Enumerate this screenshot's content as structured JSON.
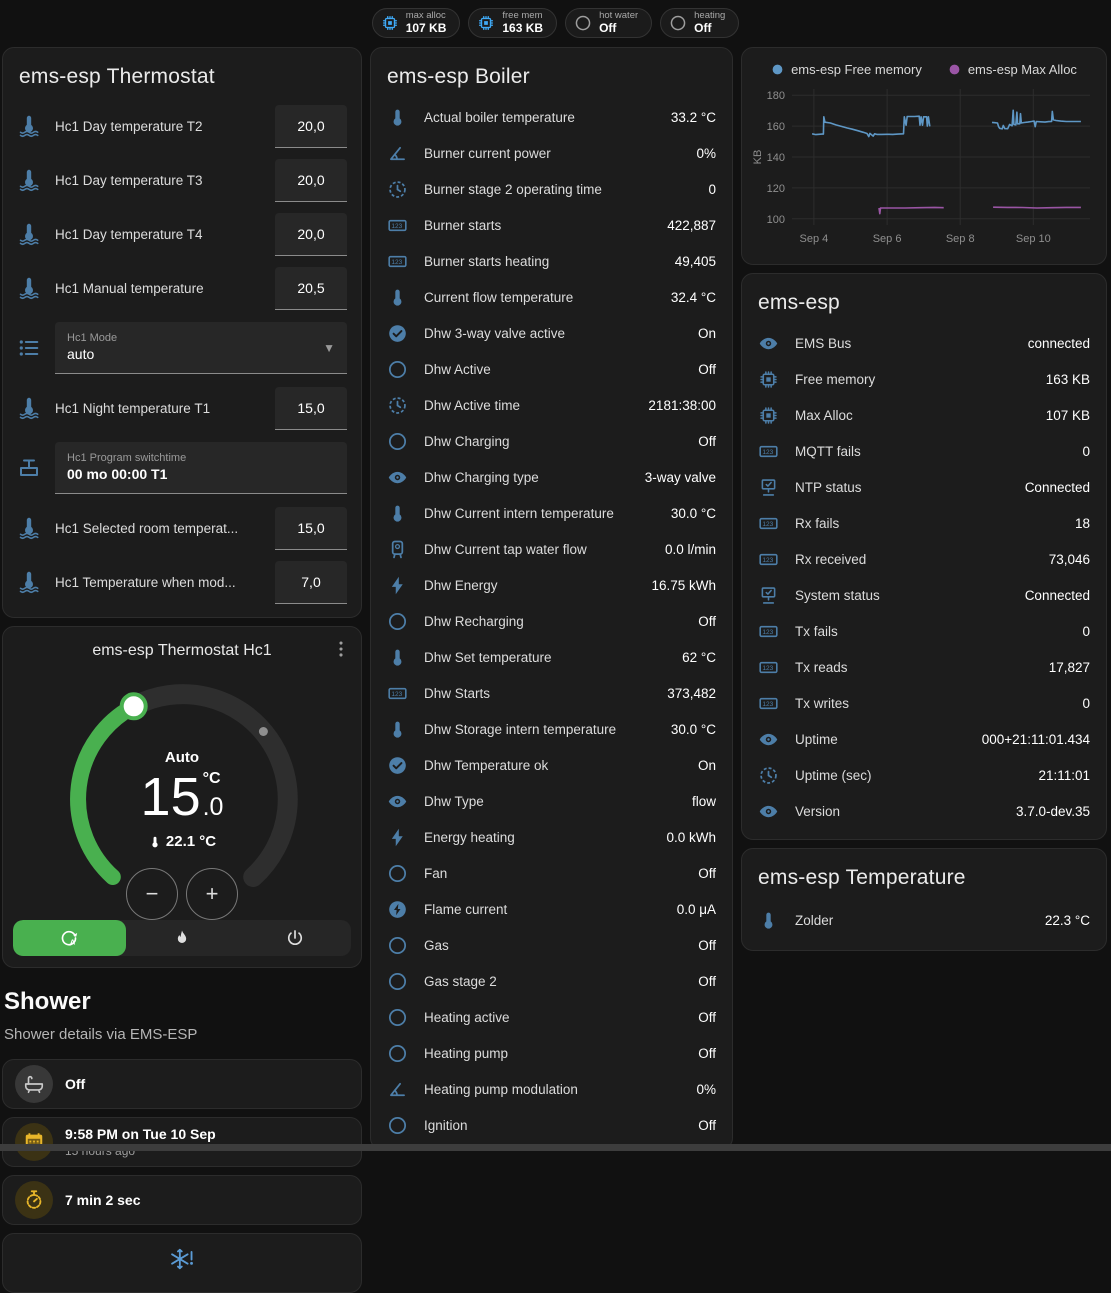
{
  "chips": [
    {
      "icon": "chip",
      "color": "#3fa9f5",
      "label": "max alloc",
      "value": "107 KB"
    },
    {
      "icon": "chip",
      "color": "#3fa9f5",
      "label": "free mem",
      "value": "163 KB"
    },
    {
      "icon": "circle",
      "color": "#9e9e9e",
      "label": "hot water",
      "value": "Off"
    },
    {
      "icon": "circle",
      "color": "#9e9e9e",
      "label": "heating",
      "value": "Off"
    }
  ],
  "thermostat_card": {
    "title": "ems-esp Thermostat",
    "rows": [
      {
        "type": "number",
        "icon": "thermometer-water",
        "label": "Hc1 Day temperature T2",
        "value": "20,0"
      },
      {
        "type": "number",
        "icon": "thermometer-water",
        "label": "Hc1 Day temperature T3",
        "value": "20,0"
      },
      {
        "type": "number",
        "icon": "thermometer-water",
        "label": "Hc1 Day temperature T4",
        "value": "20,0"
      },
      {
        "type": "number",
        "icon": "thermometer-water",
        "label": "Hc1 Manual temperature",
        "value": "20,5"
      },
      {
        "type": "select",
        "icon": "list",
        "label": "Hc1 Mode",
        "value": "auto"
      },
      {
        "type": "number",
        "icon": "thermometer-water",
        "label": "Hc1 Night temperature T1",
        "value": "15,0"
      },
      {
        "type": "textfield",
        "icon": "valve",
        "label": "Hc1 Program switchtime",
        "value": "00 mo 00:00 T1"
      },
      {
        "type": "number",
        "icon": "thermometer-water",
        "label": "Hc1 Selected room temperat...",
        "value": "15,0"
      },
      {
        "type": "number",
        "icon": "thermometer-water",
        "label": "Hc1 Temperature when mod...",
        "value": "7,0"
      }
    ]
  },
  "hc1_card": {
    "title": "ems-esp Thermostat Hc1",
    "mode_label": "Auto",
    "target_temp_int": "15",
    "target_temp_frac": ".0",
    "temp_unit": "°C",
    "current_temp": "22.1 °C",
    "minus_label": "−",
    "plus_label": "+",
    "accent_green": "#49b04f",
    "modes": [
      {
        "icon": "auto-mode",
        "active": true
      },
      {
        "icon": "flame"
      },
      {
        "icon": "power"
      }
    ]
  },
  "shower": {
    "title": "Shower",
    "subtitle": "Shower details via EMS-ESP",
    "items": [
      {
        "icon": "bathtub",
        "color": "#c9c9c9",
        "bg": "#383838",
        "value": "Off"
      },
      {
        "icon": "calendar",
        "color": "#e8b62a",
        "bg": "#3b3214",
        "value": "9:58 PM on Tue 10 Sep",
        "secondary": "15 hours ago"
      },
      {
        "icon": "timer",
        "color": "#e8b62a",
        "bg": "#3b3214",
        "value": "7 min 2 sec"
      }
    ],
    "alert_icon_color": "#5b9bd5"
  },
  "boiler_card": {
    "title": "ems-esp Boiler",
    "rows": [
      {
        "icon": "thermometer",
        "label": "Actual boiler temperature",
        "value": "33.2 °C"
      },
      {
        "icon": "angle",
        "label": "Burner current power",
        "value": "0%"
      },
      {
        "icon": "clock-dashed",
        "label": "Burner stage 2 operating time",
        "value": "0"
      },
      {
        "icon": "counter",
        "label": "Burner starts",
        "value": "422,887"
      },
      {
        "icon": "counter",
        "label": "Burner starts heating",
        "value": "49,405"
      },
      {
        "icon": "thermometer",
        "label": "Current flow temperature",
        "value": "32.4 °C"
      },
      {
        "icon": "check-circle",
        "label": "Dhw 3-way valve active",
        "value": "On"
      },
      {
        "icon": "circle",
        "label": "Dhw Active",
        "value": "Off"
      },
      {
        "icon": "clock-dashed",
        "label": "Dhw Active time",
        "value": "2181:38:00"
      },
      {
        "icon": "circle",
        "label": "Dhw Charging",
        "value": "Off"
      },
      {
        "icon": "eye",
        "label": "Dhw Charging type",
        "value": "3-way valve"
      },
      {
        "icon": "thermometer",
        "label": "Dhw Current intern temperature",
        "value": "30.0 °C"
      },
      {
        "icon": "water-heater",
        "label": "Dhw Current tap water flow",
        "value": "0.0 l/min"
      },
      {
        "icon": "flash",
        "label": "Dhw Energy",
        "value": "16.75 kWh"
      },
      {
        "icon": "circle",
        "label": "Dhw Recharging",
        "value": "Off"
      },
      {
        "icon": "thermometer",
        "label": "Dhw Set temperature",
        "value": "62 °C"
      },
      {
        "icon": "counter",
        "label": "Dhw Starts",
        "value": "373,482"
      },
      {
        "icon": "thermometer",
        "label": "Dhw Storage intern temperature",
        "value": "30.0 °C"
      },
      {
        "icon": "check-circle",
        "label": "Dhw Temperature ok",
        "value": "On"
      },
      {
        "icon": "eye",
        "label": "Dhw Type",
        "value": "flow"
      },
      {
        "icon": "flash",
        "label": "Energy heating",
        "value": "0.0 kWh"
      },
      {
        "icon": "circle",
        "label": "Fan",
        "value": "Off"
      },
      {
        "icon": "flash-circle",
        "label": "Flame current",
        "value": "0.0 μA"
      },
      {
        "icon": "circle",
        "label": "Gas",
        "value": "Off"
      },
      {
        "icon": "circle",
        "label": "Gas stage 2",
        "value": "Off"
      },
      {
        "icon": "circle",
        "label": "Heating active",
        "value": "Off"
      },
      {
        "icon": "circle",
        "label": "Heating pump",
        "value": "Off"
      },
      {
        "icon": "angle",
        "label": "Heating pump modulation",
        "value": "0%"
      },
      {
        "icon": "circle",
        "label": "Ignition",
        "value": "Off"
      }
    ]
  },
  "emsesp_card": {
    "title": "ems-esp",
    "rows": [
      {
        "icon": "eye",
        "label": "EMS Bus",
        "value": "connected"
      },
      {
        "icon": "chip",
        "label": "Free memory",
        "value": "163 KB"
      },
      {
        "icon": "chip",
        "label": "Max Alloc",
        "value": "107 KB"
      },
      {
        "icon": "counter",
        "label": "MQTT fails",
        "value": "0"
      },
      {
        "icon": "network",
        "label": "NTP status",
        "value": "Connected"
      },
      {
        "icon": "counter",
        "label": "Rx fails",
        "value": "18"
      },
      {
        "icon": "counter",
        "label": "Rx received",
        "value": "73,046"
      },
      {
        "icon": "network",
        "label": "System status",
        "value": "Connected"
      },
      {
        "icon": "counter",
        "label": "Tx fails",
        "value": "0"
      },
      {
        "icon": "counter",
        "label": "Tx reads",
        "value": "17,827"
      },
      {
        "icon": "counter",
        "label": "Tx writes",
        "value": "0"
      },
      {
        "icon": "eye",
        "label": "Uptime",
        "value": "000+21:11:01.434"
      },
      {
        "icon": "clock-dashed",
        "label": "Uptime (sec)",
        "value": "21:11:01"
      },
      {
        "icon": "eye",
        "label": "Version",
        "value": "3.7.0-dev.35"
      }
    ]
  },
  "temperature_card": {
    "title": "ems-esp Temperature",
    "rows": [
      {
        "icon": "thermometer",
        "label": "Zolder",
        "value": "22.3 °C"
      }
    ]
  },
  "chart_data": {
    "type": "line",
    "title": "",
    "xlabel": "",
    "ylabel": "KB",
    "grid": true,
    "legend_position": "top",
    "xlim": [
      3.4,
      11.55
    ],
    "ylim": [
      96,
      184
    ],
    "y_ticks": [
      100,
      120,
      140,
      160,
      180
    ],
    "x_ticks": [
      {
        "v": 4,
        "label": "Sep 4"
      },
      {
        "v": 6,
        "label": "Sep 6"
      },
      {
        "v": 8,
        "label": "Sep 8"
      },
      {
        "v": 10,
        "label": "Sep 10"
      }
    ],
    "series": [
      {
        "name": "ems-esp Free memory",
        "icon": "legend-dot",
        "color": "#5e97c5",
        "segments": [
          [
            [
              3.95,
              155
            ],
            [
              4.05,
              154.5
            ],
            [
              4.22,
              154.8
            ],
            [
              4.26,
              154.8
            ],
            [
              4.27,
              166
            ],
            [
              4.3,
              162.5
            ],
            [
              4.45,
              162
            ],
            [
              4.6,
              160.8
            ],
            [
              4.75,
              159.8
            ],
            [
              4.9,
              158.8
            ],
            [
              5.05,
              158
            ],
            [
              5.2,
              157
            ],
            [
              5.35,
              156
            ],
            [
              5.45,
              155.2
            ],
            [
              5.5,
              153.2
            ],
            [
              5.53,
              155.3
            ],
            [
              5.62,
              153.5
            ],
            [
              5.66,
              155
            ],
            [
              5.72,
              154.6
            ],
            [
              5.85,
              154.6
            ],
            [
              6.0,
              154.7
            ],
            [
              6.15,
              154.6
            ],
            [
              6.3,
              154.8
            ],
            [
              6.45,
              155
            ],
            [
              6.47,
              166
            ],
            [
              6.52,
              160.6
            ],
            [
              6.55,
              166.2
            ],
            [
              6.75,
              166.2
            ],
            [
              6.88,
              166.4
            ],
            [
              6.9,
              160.6
            ],
            [
              6.93,
              166
            ],
            [
              6.97,
              160.6
            ],
            [
              7.0,
              166
            ],
            [
              7.08,
              166
            ],
            [
              7.1,
              160
            ],
            [
              7.13,
              166
            ],
            [
              7.17,
              159.8
            ]
          ],
          [
            [
              8.87,
              162.4
            ],
            [
              8.95,
              162.2
            ],
            [
              9.02,
              162
            ],
            [
              9.05,
              159.6
            ],
            [
              9.08,
              158.6
            ],
            [
              9.15,
              158.2
            ],
            [
              9.18,
              160.4
            ],
            [
              9.22,
              158.4
            ],
            [
              9.3,
              158.3
            ],
            [
              9.35,
              161
            ],
            [
              9.42,
              160.2
            ],
            [
              9.45,
              170.2
            ],
            [
              9.47,
              161
            ],
            [
              9.52,
              160.8
            ],
            [
              9.55,
              169
            ],
            [
              9.57,
              161.5
            ],
            [
              9.63,
              161.5
            ],
            [
              9.65,
              168
            ],
            [
              9.67,
              162
            ],
            [
              9.75,
              162.3
            ],
            [
              9.85,
              162.6
            ],
            [
              9.95,
              163
            ],
            [
              10.02,
              163.3
            ],
            [
              10.05,
              159.6
            ],
            [
              10.08,
              163
            ],
            [
              10.2,
              162.8
            ],
            [
              10.32,
              162.6
            ],
            [
              10.42,
              162.9
            ],
            [
              10.5,
              163
            ],
            [
              10.52,
              169.5
            ],
            [
              10.55,
              164
            ],
            [
              10.62,
              163.6
            ],
            [
              10.75,
              163.2
            ],
            [
              10.9,
              163
            ],
            [
              11.1,
              163
            ],
            [
              11.3,
              163
            ]
          ]
        ]
      },
      {
        "name": "ems-esp Max Alloc",
        "icon": "legend-dot",
        "color": "#9a55a5",
        "segments": [
          [
            [
              5.78,
              107
            ],
            [
              5.8,
              103.3
            ],
            [
              5.82,
              107
            ],
            [
              6.1,
              107
            ],
            [
              6.5,
              107
            ],
            [
              6.9,
              107.2
            ],
            [
              7.3,
              107.4
            ],
            [
              7.55,
              107.2
            ]
          ],
          [
            [
              8.9,
              107.5
            ],
            [
              9.3,
              107.4
            ],
            [
              9.7,
              107.3
            ],
            [
              10.1,
              107
            ],
            [
              10.5,
              107.2
            ],
            [
              10.9,
              107.4
            ],
            [
              11.3,
              107.4
            ]
          ]
        ]
      }
    ]
  }
}
